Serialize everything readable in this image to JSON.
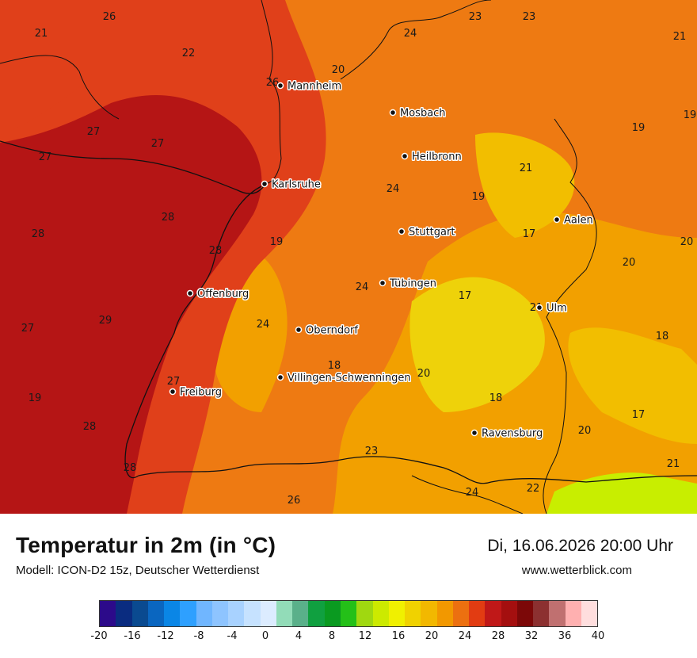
{
  "title": "Temperatur in 2m (in °C)",
  "model": "Modell: ICON-D2 15z, Deutscher Wetterdienst",
  "datetime": "Di, 16.06.2026 20:00 Uhr",
  "site": "www.wetterblick.com",
  "colors": {
    "c28plus": "#b51515",
    "c24": "#e0401a",
    "c22": "#ee7a12",
    "c20": "#f2a000",
    "c18": "#f2be00",
    "c16": "#eed20a",
    "green": "#c8ee00"
  },
  "cities": [
    {
      "name": "Mannheim",
      "label": "Mannheim"
    },
    {
      "name": "Mosbach",
      "label": "Mosbach"
    },
    {
      "name": "Heilbronn",
      "label": "Heilbronn"
    },
    {
      "name": "Karlsruhe",
      "label": "Karlsruhe"
    },
    {
      "name": "Stuttgart",
      "label": "Stuttgart"
    },
    {
      "name": "Aalen",
      "label": "Aalen"
    },
    {
      "name": "Tuebingen",
      "label": "Tübingen"
    },
    {
      "name": "Offenburg",
      "label": "Offenburg"
    },
    {
      "name": "Ulm",
      "label": "Ulm"
    },
    {
      "name": "Oberndorf",
      "label": "Oberndorf"
    },
    {
      "name": "VS",
      "label": "Villingen-Schwenningen"
    },
    {
      "name": "Freiburg",
      "label": "Freiburg"
    },
    {
      "name": "Ravensburg",
      "label": "Ravensburg"
    }
  ],
  "values": [
    "26",
    "21",
    "22",
    "20",
    "24",
    "23",
    "23",
    "21",
    "27",
    "27",
    "27",
    "19",
    "19",
    "21",
    "24",
    "19",
    "28",
    "28",
    "28",
    "19",
    "17",
    "20",
    "20",
    "24",
    "17",
    "21",
    "27",
    "29",
    "24",
    "18",
    "18",
    "18",
    "20",
    "19",
    "27",
    "28",
    "20",
    "17",
    "23",
    "24",
    "22",
    "28",
    "21",
    "26",
    "26"
  ],
  "colorbar": {
    "colors": [
      "#2c0a8a",
      "#0a2c80",
      "#0a4a90",
      "#0a66c0",
      "#0a86e6",
      "#2ea0ff",
      "#70b6ff",
      "#8ec4ff",
      "#a8d2ff",
      "#c6e2ff",
      "#dcecff",
      "#92dcb8",
      "#5ab08a",
      "#10a040",
      "#0a9a20",
      "#24c018",
      "#a0d810",
      "#ccea00",
      "#f0f000",
      "#f0d200",
      "#f2b800",
      "#f29800",
      "#ec7010",
      "#e23c12",
      "#c01818",
      "#a40f0f",
      "#7c0808",
      "#8c3030",
      "#c07070",
      "#ffb0b0",
      "#ffdede"
    ],
    "ticks": [
      "-20",
      "-16",
      "-12",
      "-8",
      "-4",
      "0",
      "4",
      "8",
      "12",
      "16",
      "20",
      "24",
      "28",
      "32",
      "36",
      "40"
    ]
  }
}
